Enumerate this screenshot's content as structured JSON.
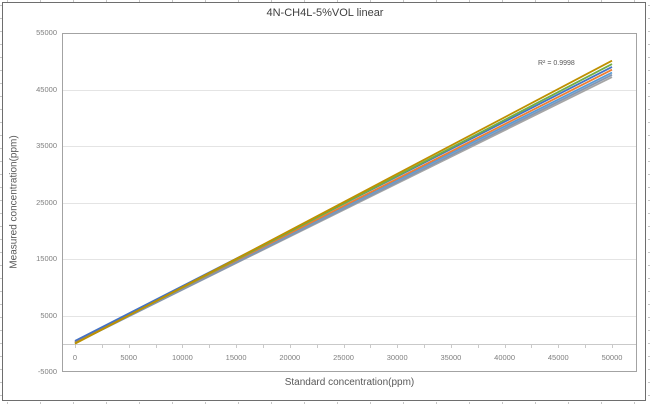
{
  "chart_data": {
    "type": "line",
    "title": "4N-CH4L-5%VOL linear",
    "xlabel": "Standard concentration(ppm)",
    "ylabel": "Measured concentration(ppm)",
    "annotation": "R² = 0.9998",
    "xlim": [
      0,
      50000
    ],
    "ylim": [
      -5000,
      55000
    ],
    "xticks": [
      0,
      5000,
      10000,
      15000,
      20000,
      25000,
      30000,
      35000,
      40000,
      45000,
      50000
    ],
    "yticks": [
      -5000,
      5000,
      15000,
      25000,
      35000,
      45000,
      55000
    ],
    "x_minor_tick_step": 2500,
    "grid": "horizontal",
    "legend": "none",
    "series": [
      {
        "name": "series-gray",
        "color": "#A5A5A5",
        "x": [
          0,
          50000
        ],
        "y": [
          150,
          47200
        ]
      },
      {
        "name": "series-steel-blue",
        "color": "#8496B0",
        "x": [
          0,
          50000
        ],
        "y": [
          100,
          47600
        ]
      },
      {
        "name": "series-light-blue",
        "color": "#5B9BD5",
        "x": [
          0,
          50000
        ],
        "y": [
          350,
          48000
        ]
      },
      {
        "name": "series-orange",
        "color": "#ED7D31",
        "x": [
          0,
          50000
        ],
        "y": [
          250,
          48500
        ]
      },
      {
        "name": "series-blue",
        "color": "#4472C4",
        "x": [
          0,
          50000
        ],
        "y": [
          500,
          49000
        ]
      },
      {
        "name": "series-green",
        "color": "#70AD47",
        "x": [
          0,
          50000
        ],
        "y": [
          50,
          49500
        ]
      },
      {
        "name": "series-dark-yellow",
        "color": "#BF9000",
        "x": [
          0,
          50000
        ],
        "y": [
          0,
          50100
        ]
      }
    ]
  },
  "colors": {
    "title": "#3f3f3f",
    "axis_label": "#7f7f7f",
    "axis_title": "#595959",
    "gridline": "#e4e4e4",
    "axis_line": "#c9c9c9",
    "plot_border": "#a3a3a3",
    "chart_border": "#6e6e6e"
  }
}
